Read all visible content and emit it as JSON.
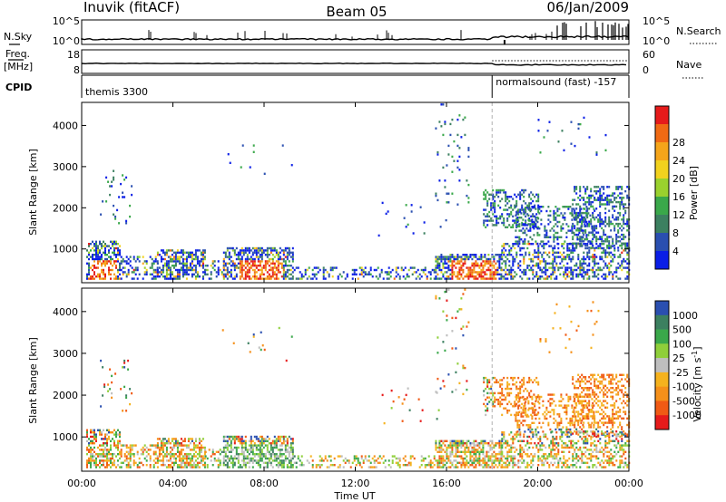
{
  "header": {
    "station": "Inuvik (fitACF)",
    "beam": "Beam 05",
    "date": "06/Jan/2009"
  },
  "strip_labels": {
    "nsky": "N.Sky",
    "nsearch": "N.Search",
    "freq_top": "Freq.",
    "freq_unit": "[MHz]",
    "nave": "Nave",
    "cpid": "CPID"
  },
  "strip_ticks": {
    "n_left_top": "10^5",
    "n_left_bottom": "10^0",
    "n_right_top": "10^5",
    "n_right_bottom": "10^0",
    "freq_top": "18",
    "freq_bottom": "8",
    "nave_top": "60",
    "nave_bottom": "0"
  },
  "cpid": {
    "segments": [
      {
        "label": "themis 3300",
        "start_hour": 0
      },
      {
        "label": "normalsound (fast) -157",
        "start_hour": 18
      }
    ]
  },
  "colors": {
    "power": [
      "#0a1ee6",
      "#2a4fb0",
      "#3c8060",
      "#3aa84a",
      "#9ad12e",
      "#f2d21e",
      "#f5a51a",
      "#f06a14",
      "#e61b1b"
    ],
    "velocity": [
      "#e61b1b",
      "#f05a14",
      "#f5901a",
      "#f5b21e",
      "#bebebe",
      "#8fcf3a",
      "#3aa84a",
      "#3c8060",
      "#2a4fb0"
    ]
  },
  "chart_data": [
    {
      "type": "heatmap",
      "panel": "power",
      "xlabel": "",
      "ylabel": "Slant Range [km]",
      "xlim": [
        0,
        24
      ],
      "ylim": [
        180,
        4560
      ],
      "xticks": [
        "00:00",
        "04:00",
        "08:00",
        "12:00",
        "16:00",
        "20:00",
        "00:00"
      ],
      "yticks": [
        1000,
        2000,
        3000,
        4000
      ],
      "colorbar": {
        "label": "Power [dB]",
        "ticks": [
          "4",
          "8",
          "12",
          "16",
          "20",
          "24",
          "28"
        ]
      }
    },
    {
      "type": "heatmap",
      "panel": "velocity",
      "xlabel": "Time UT",
      "ylabel": "Slant Range [km]",
      "xlim": [
        0,
        24
      ],
      "ylim": [
        180,
        4560
      ],
      "xticks": [
        "00:00",
        "04:00",
        "08:00",
        "12:00",
        "16:00",
        "20:00",
        "00:00"
      ],
      "yticks": [
        1000,
        2000,
        3000,
        4000
      ],
      "colorbar": {
        "label": "Velocity [m s^-1]",
        "ticks": [
          "1000",
          "500",
          "100",
          "25",
          "-25",
          "-100",
          "-500",
          "-1000"
        ]
      }
    }
  ]
}
